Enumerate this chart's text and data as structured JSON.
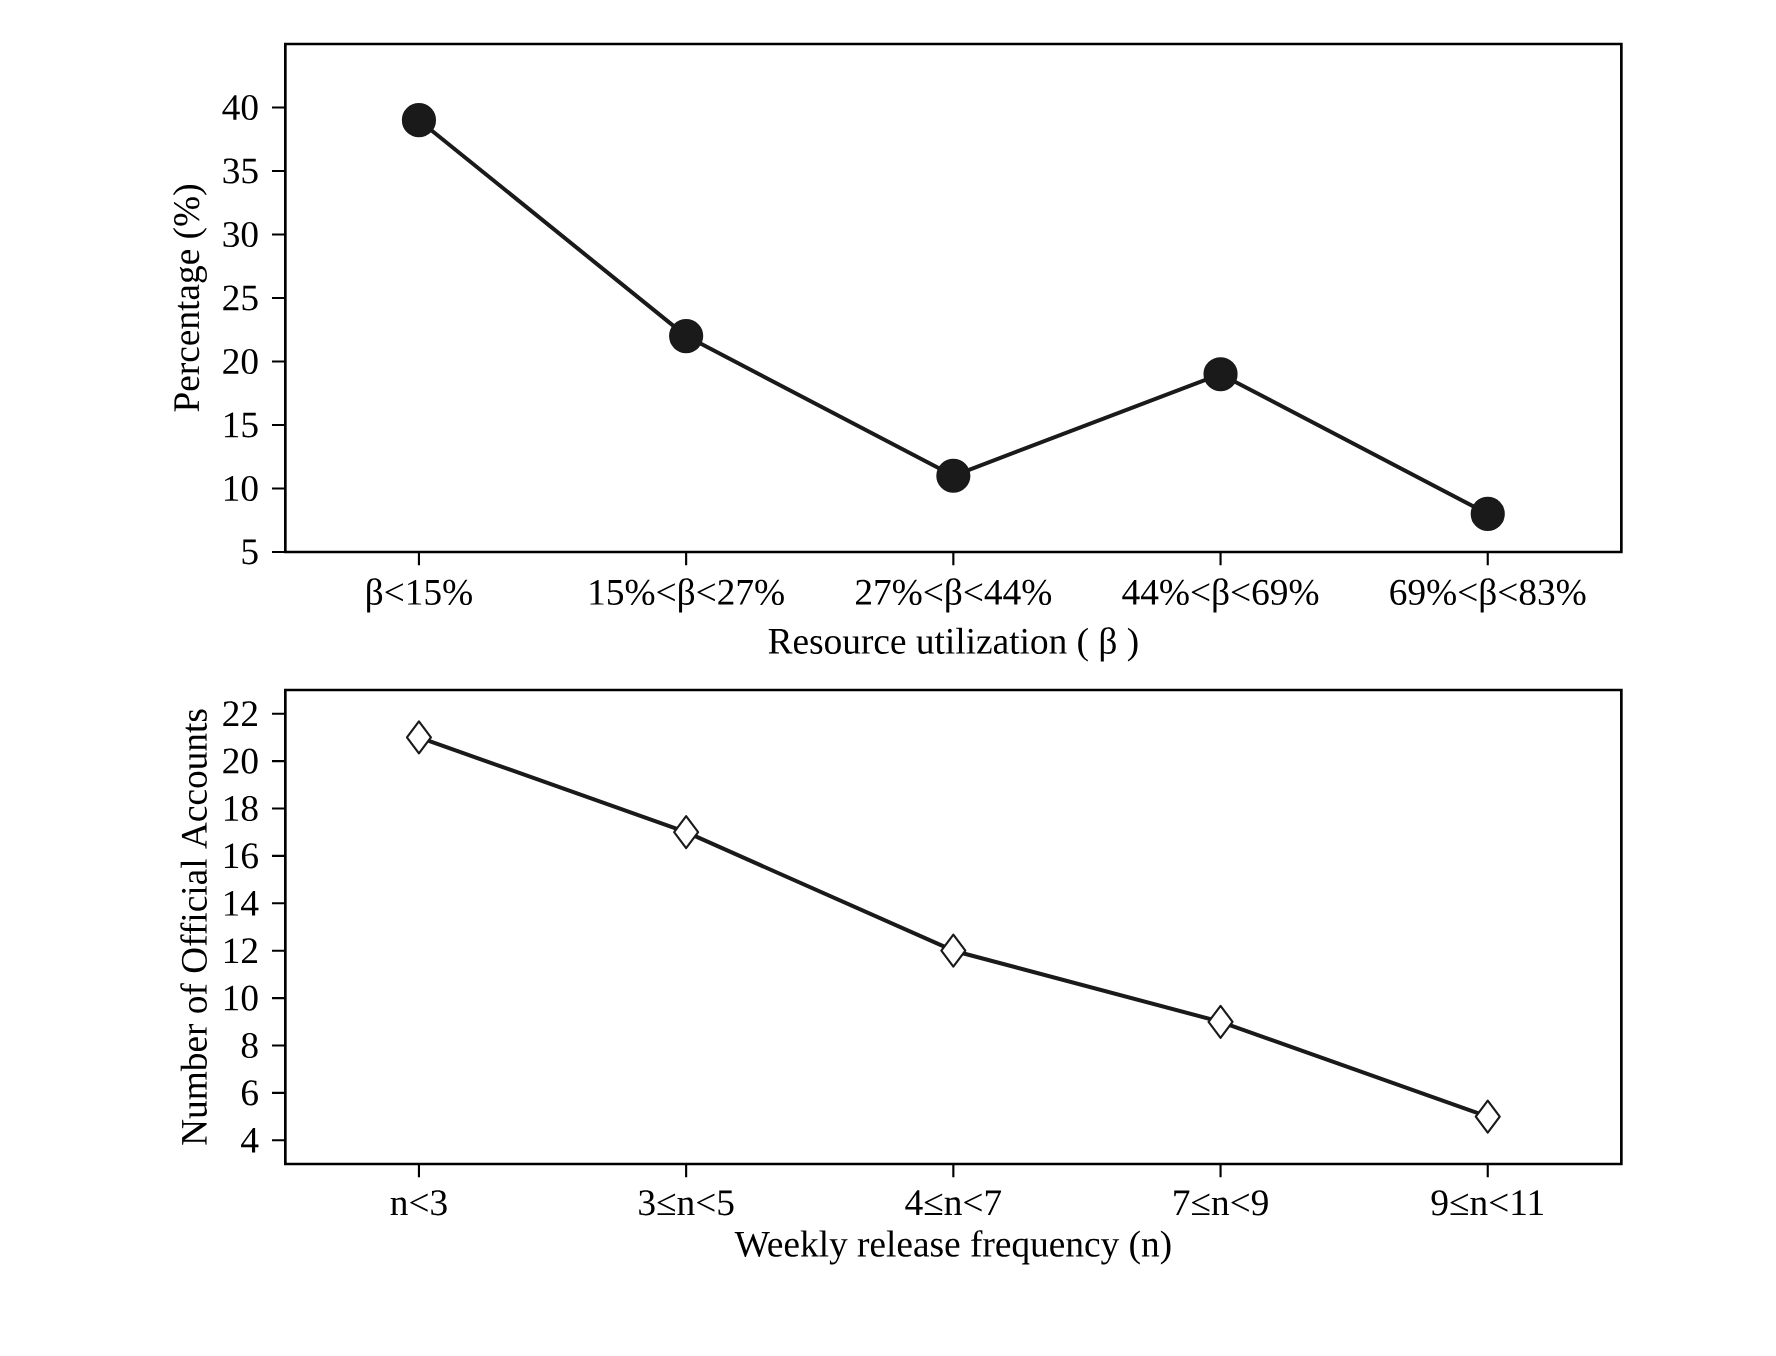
{
  "chart_data": [
    {
      "type": "line",
      "xlabel": "Resource utilization ( β )",
      "ylabel": "Percentage (%)",
      "categories": [
        "β<15%",
        "15%<β<27%",
        "27%<β<44%",
        "44%<β<69%",
        "69%<β<83%"
      ],
      "values": [
        39,
        22,
        11,
        19,
        8
      ],
      "color": "#1a1a1a",
      "marker": "circle",
      "ylim": [
        5,
        45
      ],
      "yticks": [
        5,
        10,
        15,
        20,
        25,
        30,
        35,
        40
      ]
    },
    {
      "type": "line",
      "xlabel": "Weekly release frequency (n)",
      "ylabel": "Number of Official Accounts",
      "categories": [
        "n<3",
        "3≤n<5",
        "4≤n<7",
        "7≤n<9",
        "9≤n<11"
      ],
      "values": [
        21,
        17,
        12,
        9,
        5
      ],
      "color": "#1a1a1a",
      "marker": "diamond",
      "ylim": [
        3,
        23
      ],
      "yticks": [
        4,
        6,
        8,
        10,
        12,
        14,
        16,
        18,
        20,
        22
      ]
    }
  ]
}
